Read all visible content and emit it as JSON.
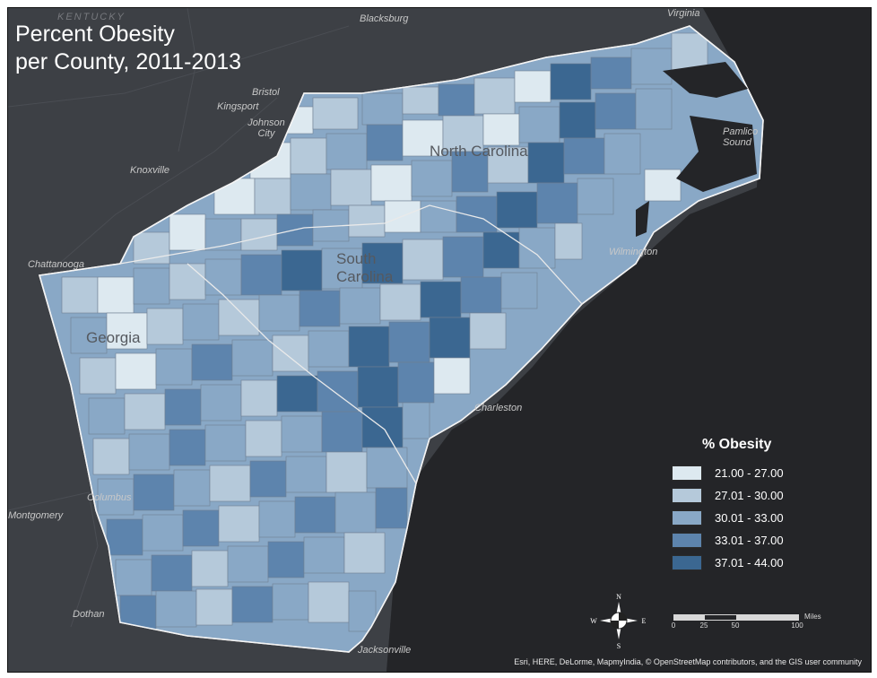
{
  "title_line1": "Percent Obesity",
  "title_line2": "per County, 2011-2013",
  "legend": {
    "title": "% Obesity",
    "classes": [
      {
        "label": "21.00 - 27.00",
        "color": "#dde9f0"
      },
      {
        "label": "27.01 - 30.00",
        "color": "#b5c9da"
      },
      {
        "label": "30.01 - 33.00",
        "color": "#89a8c6"
      },
      {
        "label": "33.01 - 37.00",
        "color": "#5d84ad"
      },
      {
        "label": "37.01 - 44.00",
        "color": "#3b6791"
      }
    ]
  },
  "states": {
    "north_carolina": "North Carolina",
    "south_carolina": "South Carolina",
    "georgia": "Georgia"
  },
  "places": {
    "kentucky": "KENTUCKY",
    "blacksburg": "Blacksburg",
    "virginia": "Virginia",
    "bristol": "Bristol",
    "kingsport": "Kingsport",
    "johnson_city": "Johnson City",
    "knoxville": "Knoxville",
    "chattanooga": "Chattanooga",
    "pamlico_sound": "Pamlico Sound",
    "wilmington": "Wilmington",
    "charleston": "Charleston",
    "columbus": "Columbus",
    "montgomery": "Montgomery",
    "dothan": "Dothan",
    "jacksonville": "Jacksonville"
  },
  "scale": {
    "ticks": [
      "0",
      "25",
      "50",
      "100"
    ],
    "unit": "Miles"
  },
  "compass": {
    "n": "N",
    "s": "S",
    "e": "E",
    "w": "W"
  },
  "attribution": "Esri, HERE, DeLorme, MapmyIndia, © OpenStreetMap contributors, and the GIS user community"
}
